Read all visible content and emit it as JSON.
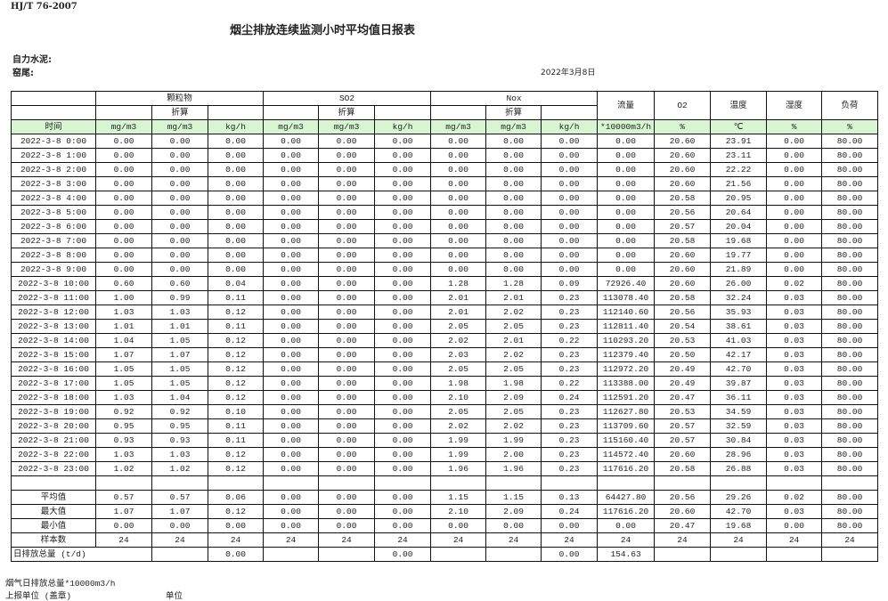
{
  "header": {
    "standard": "HJ/T  76-2007",
    "title": "烟尘排放连续监测小时平均值日报表",
    "company": "自力水泥:",
    "kiln": "窑尾:",
    "date": "2022年3月8日"
  },
  "table": {
    "groups": [
      "颗粒物",
      "SO2",
      "Nox"
    ],
    "single_headers": [
      "流量",
      "O2",
      "温度",
      "湿度",
      "负荷"
    ],
    "converted_label": "折算",
    "time_label": "时间",
    "units": [
      "mg/m3",
      "mg/m3",
      "kg/h",
      "mg/m3",
      "mg/m3",
      "kg/h",
      "mg/m3",
      "mg/m3",
      "kg/h",
      "*10000m3/h",
      "%",
      "℃",
      "%",
      "%"
    ],
    "rows": [
      [
        "2022-3-8 0:00",
        "0.00",
        "0.00",
        "0.00",
        "0.00",
        "0.00",
        "0.00",
        "0.00",
        "0.00",
        "0.00",
        "0.00",
        "20.60",
        "23.91",
        "0.00",
        "80.00"
      ],
      [
        "2022-3-8 1:00",
        "0.00",
        "0.00",
        "0.00",
        "0.00",
        "0.00",
        "0.00",
        "0.00",
        "0.00",
        "0.00",
        "0.00",
        "20.60",
        "23.11",
        "0.00",
        "80.00"
      ],
      [
        "2022-3-8 2:00",
        "0.00",
        "0.00",
        "0.00",
        "0.00",
        "0.00",
        "0.00",
        "0.00",
        "0.00",
        "0.00",
        "0.00",
        "20.60",
        "22.22",
        "0.00",
        "80.00"
      ],
      [
        "2022-3-8 3:00",
        "0.00",
        "0.00",
        "0.00",
        "0.00",
        "0.00",
        "0.00",
        "0.00",
        "0.00",
        "0.00",
        "0.00",
        "20.60",
        "21.56",
        "0.00",
        "80.00"
      ],
      [
        "2022-3-8 4:00",
        "0.00",
        "0.00",
        "0.00",
        "0.00",
        "0.00",
        "0.00",
        "0.00",
        "0.00",
        "0.00",
        "0.00",
        "20.58",
        "20.95",
        "0.00",
        "80.00"
      ],
      [
        "2022-3-8 5:00",
        "0.00",
        "0.00",
        "0.00",
        "0.00",
        "0.00",
        "0.00",
        "0.00",
        "0.00",
        "0.00",
        "0.00",
        "20.56",
        "20.64",
        "0.00",
        "80.00"
      ],
      [
        "2022-3-8 6:00",
        "0.00",
        "0.00",
        "0.00",
        "0.00",
        "0.00",
        "0.00",
        "0.00",
        "0.00",
        "0.00",
        "0.00",
        "20.57",
        "20.04",
        "0.00",
        "80.00"
      ],
      [
        "2022-3-8 7:00",
        "0.00",
        "0.00",
        "0.00",
        "0.00",
        "0.00",
        "0.00",
        "0.00",
        "0.00",
        "0.00",
        "0.00",
        "20.58",
        "19.68",
        "0.00",
        "80.00"
      ],
      [
        "2022-3-8 8:00",
        "0.00",
        "0.00",
        "0.00",
        "0.00",
        "0.00",
        "0.00",
        "0.00",
        "0.00",
        "0.00",
        "0.00",
        "20.60",
        "19.77",
        "0.00",
        "80.00"
      ],
      [
        "2022-3-8 9:00",
        "0.00",
        "0.00",
        "0.00",
        "0.00",
        "0.00",
        "0.00",
        "0.00",
        "0.00",
        "0.00",
        "0.00",
        "20.60",
        "21.89",
        "0.00",
        "80.00"
      ],
      [
        "2022-3-8 10:00",
        "0.60",
        "0.60",
        "0.04",
        "0.00",
        "0.00",
        "0.00",
        "1.28",
        "1.28",
        "0.09",
        "72926.40",
        "20.60",
        "26.00",
        "0.02",
        "80.00"
      ],
      [
        "2022-3-8 11:00",
        "1.00",
        "0.99",
        "0.11",
        "0.00",
        "0.00",
        "0.00",
        "2.01",
        "2.01",
        "0.23",
        "113078.40",
        "20.58",
        "32.24",
        "0.03",
        "80.00"
      ],
      [
        "2022-3-8 12:00",
        "1.03",
        "1.03",
        "0.12",
        "0.00",
        "0.00",
        "0.00",
        "2.01",
        "2.02",
        "0.23",
        "112140.60",
        "20.56",
        "35.93",
        "0.03",
        "80.00"
      ],
      [
        "2022-3-8 13:00",
        "1.01",
        "1.01",
        "0.11",
        "0.00",
        "0.00",
        "0.00",
        "2.05",
        "2.05",
        "0.23",
        "112811.40",
        "20.54",
        "38.61",
        "0.03",
        "80.00"
      ],
      [
        "2022-3-8 14:00",
        "1.04",
        "1.05",
        "0.12",
        "0.00",
        "0.00",
        "0.00",
        "2.02",
        "2.01",
        "0.22",
        "110293.20",
        "20.53",
        "41.03",
        "0.03",
        "80.00"
      ],
      [
        "2022-3-8 15:00",
        "1.07",
        "1.07",
        "0.12",
        "0.00",
        "0.00",
        "0.00",
        "2.03",
        "2.02",
        "0.23",
        "112379.40",
        "20.50",
        "42.17",
        "0.03",
        "80.00"
      ],
      [
        "2022-3-8 16:00",
        "1.05",
        "1.05",
        "0.12",
        "0.00",
        "0.00",
        "0.00",
        "2.05",
        "2.05",
        "0.23",
        "112972.20",
        "20.49",
        "42.70",
        "0.03",
        "80.00"
      ],
      [
        "2022-3-8 17:00",
        "1.05",
        "1.05",
        "0.12",
        "0.00",
        "0.00",
        "0.00",
        "1.98",
        "1.98",
        "0.22",
        "113388.00",
        "20.49",
        "39.87",
        "0.03",
        "80.00"
      ],
      [
        "2022-3-8 18:00",
        "1.03",
        "1.04",
        "0.12",
        "0.00",
        "0.00",
        "0.00",
        "2.10",
        "2.09",
        "0.24",
        "112591.20",
        "20.47",
        "36.11",
        "0.03",
        "80.00"
      ],
      [
        "2022-3-8 19:00",
        "0.92",
        "0.92",
        "0.10",
        "0.00",
        "0.00",
        "0.00",
        "2.05",
        "2.05",
        "0.23",
        "112627.80",
        "20.53",
        "34.59",
        "0.03",
        "80.00"
      ],
      [
        "2022-3-8 20:00",
        "0.95",
        "0.95",
        "0.11",
        "0.00",
        "0.00",
        "0.00",
        "2.02",
        "2.02",
        "0.23",
        "113709.60",
        "20.57",
        "32.59",
        "0.03",
        "80.00"
      ],
      [
        "2022-3-8 21:00",
        "0.93",
        "0.93",
        "0.11",
        "0.00",
        "0.00",
        "0.00",
        "1.99",
        "1.99",
        "0.23",
        "115160.40",
        "20.57",
        "30.84",
        "0.03",
        "80.00"
      ],
      [
        "2022-3-8 22:00",
        "1.03",
        "1.03",
        "0.12",
        "0.00",
        "0.00",
        "0.00",
        "1.99",
        "2.00",
        "0.23",
        "114572.40",
        "20.60",
        "28.96",
        "0.03",
        "80.00"
      ],
      [
        "2022-3-8 23:00",
        "1.02",
        "1.02",
        "0.12",
        "0.00",
        "0.00",
        "0.00",
        "1.96",
        "1.96",
        "0.23",
        "117616.20",
        "20.58",
        "26.88",
        "0.03",
        "80.00"
      ]
    ],
    "summary": [
      [
        "平均值",
        "0.57",
        "0.57",
        "0.06",
        "0.00",
        "0.00",
        "0.00",
        "1.15",
        "1.15",
        "0.13",
        "64427.80",
        "20.56",
        "29.26",
        "0.02",
        "80.00"
      ],
      [
        "最大值",
        "1.07",
        "1.07",
        "0.12",
        "0.00",
        "0.00",
        "0.00",
        "2.10",
        "2.09",
        "0.24",
        "117616.20",
        "20.60",
        "42.70",
        "0.03",
        "80.00"
      ],
      [
        "最小值",
        "0.00",
        "0.00",
        "0.00",
        "0.00",
        "0.00",
        "0.00",
        "0.00",
        "0.00",
        "0.00",
        "0.00",
        "20.47",
        "19.68",
        "0.00",
        "80.00"
      ],
      [
        "样本数",
        "24",
        "24",
        "24",
        "24",
        "24",
        "24",
        "24",
        "24",
        "24",
        "24",
        "24",
        "24",
        "24",
        "24"
      ]
    ],
    "daily_total": {
      "label": "日排放总量 (t/d)",
      "dust": "0.00",
      "so2": "0.00",
      "nox": "0.00",
      "flow": "154.63"
    }
  },
  "footer": {
    "flue_gas_note": "烟气日排放总量*10000m3/h",
    "reporting_unit": "上报单位 (盖章)",
    "unit_label": "单位"
  }
}
